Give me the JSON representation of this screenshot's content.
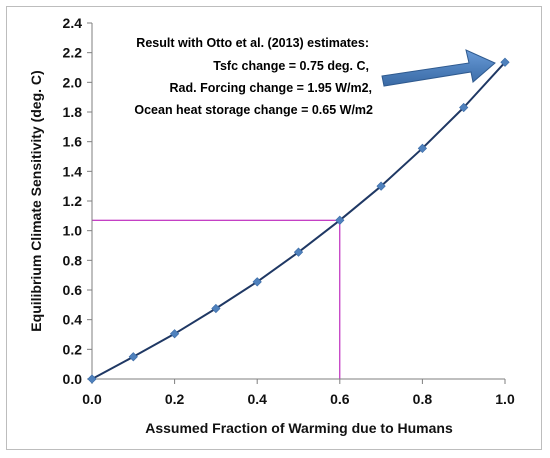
{
  "chart_data": {
    "type": "line",
    "xlabel": "Assumed Fraction of Warming due to Humans",
    "ylabel": "Equilibrium Climate Sensitivity (deg. C)",
    "xlim": [
      0.0,
      1.0
    ],
    "ylim": [
      0.0,
      2.4
    ],
    "x_ticks": [
      "0.0",
      "0.2",
      "0.4",
      "0.6",
      "0.8",
      "1.0"
    ],
    "y_ticks": [
      "0.0",
      "0.2",
      "0.4",
      "0.6",
      "0.8",
      "1.0",
      "1.2",
      "1.4",
      "1.6",
      "1.8",
      "2.0",
      "2.2",
      "2.4"
    ],
    "grid": false,
    "series": [
      {
        "x": [
          0.0,
          0.1,
          0.2,
          0.3,
          0.4,
          0.5,
          0.6,
          0.7,
          0.8,
          0.9,
          1.0
        ],
        "values": [
          0.0,
          0.15,
          0.305,
          0.475,
          0.655,
          0.855,
          1.07,
          1.3,
          1.555,
          1.83,
          2.135
        ],
        "color": "#1f3864",
        "marker_color": "#4f81bd"
      }
    ],
    "reference_lines": {
      "x": 0.6,
      "y": 1.07,
      "color": "#b000b0"
    },
    "annotation": {
      "lines": [
        "Result with Otto et al. (2013) estimates:",
        "Tsfc change = 0.75 deg. C,",
        "Rad. Forcing change = 1.95 W/m2,",
        "Ocean heat storage change = 0.65 W/m2"
      ],
      "arrow_color": "#4f81bd"
    }
  }
}
